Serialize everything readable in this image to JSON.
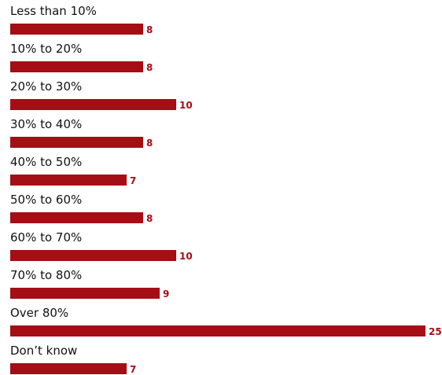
{
  "chart_data": {
    "type": "bar",
    "orientation": "horizontal",
    "categories": [
      "Less than 10%",
      "10% to 20%",
      "20% to 30%",
      "30% to 40%",
      "40% to 50%",
      "50% to 60%",
      "60% to 70%",
      "70% to 80%",
      "Over 80%",
      "Don’t know"
    ],
    "values": [
      8,
      8,
      10,
      8,
      7,
      8,
      10,
      9,
      25,
      7
    ],
    "value_labels": [
      "8",
      "8",
      "10",
      "8",
      "7",
      "8",
      "10",
      "9",
      "25",
      "7"
    ],
    "title": "",
    "xlabel": "",
    "ylabel": "",
    "xlim": [
      0,
      25
    ],
    "grid": false,
    "legend": "none",
    "bar_color": "#a50e15",
    "label_color": "#a50e15"
  }
}
